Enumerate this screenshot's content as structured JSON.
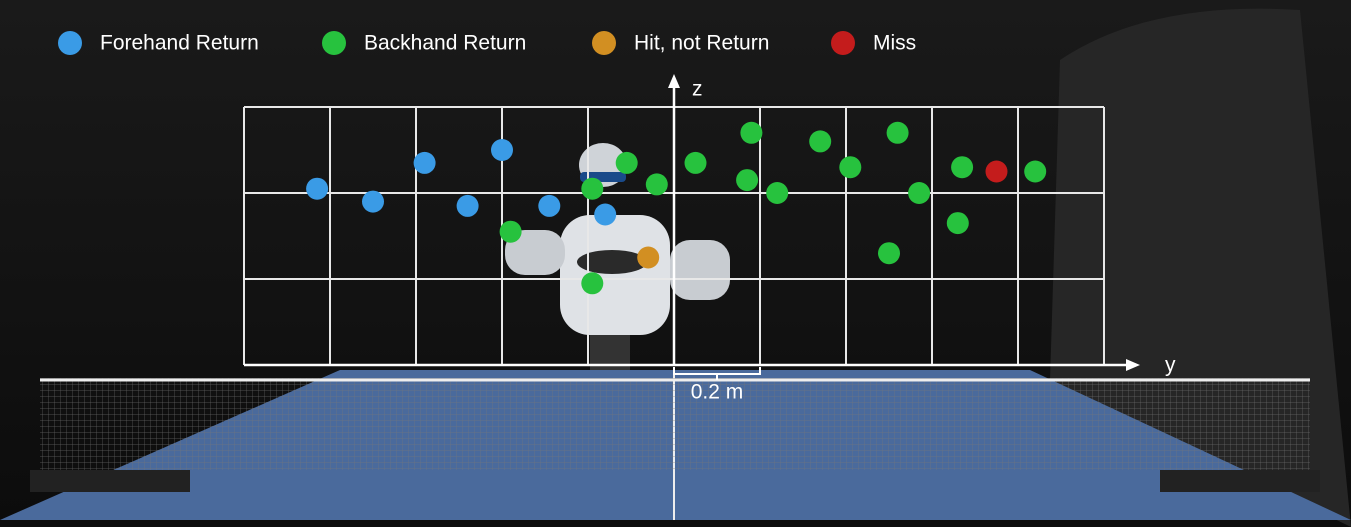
{
  "chart_data": {
    "type": "scatter",
    "x_label": "y",
    "y_label": "z",
    "scale_bar_label": "0.2 m",
    "xlim": [
      -1,
      1
    ],
    "ylim": [
      0,
      0.6
    ],
    "xticks": [
      -1,
      -0.8,
      -0.6,
      -0.4,
      -0.2,
      0,
      0.2,
      0.4,
      0.6,
      0.8,
      1
    ],
    "yticks": [
      0,
      0.2,
      0.4,
      0.6
    ],
    "grid": true,
    "legend": "top",
    "series": [
      {
        "name": "Forehand Return",
        "color": "#3a9be6",
        "x": [
          -0.83,
          -0.7,
          -0.58,
          -0.4,
          -0.48,
          -0.29,
          -0.16
        ],
        "values": [
          0.41,
          0.38,
          0.47,
          0.5,
          0.37,
          0.37,
          0.35
        ]
      },
      {
        "name": "Backhand Return",
        "color": "#27c23e",
        "x": [
          -0.11,
          -0.19,
          -0.04,
          0.05,
          0.18,
          0.17,
          0.24,
          0.34,
          0.41,
          0.52,
          0.57,
          0.67,
          0.66,
          0.5,
          0.84,
          -0.38,
          -0.19
        ],
        "values": [
          0.47,
          0.41,
          0.42,
          0.47,
          0.54,
          0.43,
          0.4,
          0.52,
          0.46,
          0.54,
          0.4,
          0.46,
          0.33,
          0.26,
          0.45,
          0.31,
          0.19
        ]
      },
      {
        "name": "Hit, not Return",
        "color": "#d28f22",
        "x": [
          -0.06
        ],
        "values": [
          0.25
        ]
      },
      {
        "name": "Miss",
        "color": "#c41c1c",
        "x": [
          0.75
        ],
        "values": [
          0.45
        ]
      }
    ]
  }
}
